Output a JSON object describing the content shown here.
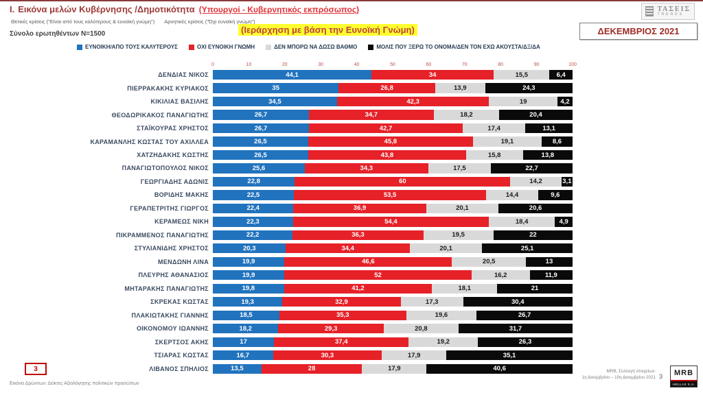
{
  "header": {
    "section_number": "I.",
    "title": "Εικόνα μελών Κυβέρνησης /Δημοτικότητα",
    "title_suffix": "(Υπουργοί - Κυβερνητικός εκπρόσωπος)",
    "subtitle_positive": "Θετικές κρίσεις (\"Είναι από τους καλύτερους & ευνοϊκή γνώμη\")",
    "subtitle_negative": "Αρνητικές κρίσεις (\"Όχι ευνοϊκή γνώμη\")",
    "sample": "Σύνολο ερωτηθέντων N=1500",
    "ranking_note": "(Ιεράρχηση με βάση την Ευνοϊκή Γνώμη)",
    "date_box": "ΔΕΚΕΜΒΡΙΟΣ 2021",
    "taseis_logo_line1": "ΤΑΣΕΙΣ",
    "taseis_logo_line2": "TRENDS"
  },
  "footer": {
    "page_badge": "3",
    "left_text": "Εικόνα Δρώντων: Δείκτες Αξιολόγησης πολιτικών προσώπων",
    "right_line1": "MRB, Συλλογή στοιχείων:",
    "right_line2": "1η Δεκεμβρίου – 10η Δεκεμβρίου 2021",
    "page_number": "3",
    "mrb_logo_text": "MRB",
    "mrb_logo_sub": "HELLAS S.A."
  },
  "chart_data": {
    "type": "bar",
    "stacked": true,
    "orientation": "horizontal",
    "xlim": [
      0,
      100
    ],
    "x_ticks": [
      0,
      10,
      20,
      30,
      40,
      50,
      60,
      70,
      80,
      90,
      100
    ],
    "grid": false,
    "legend_position": "top",
    "series": [
      {
        "key": "favorable",
        "name": "ΕΥΝΟΙΚΗ/ΑΠΟ ΤΟΥΣ ΚΑΛΥΤΕΡΟΥΣ",
        "color": "#2173be",
        "label_color": "#ffffff"
      },
      {
        "key": "not-favorable",
        "name": "ΟΧΙ ΕΥΝΟΙΚΗ ΓΝΩΜΗ",
        "color": "#e62128",
        "label_color": "#ffffff"
      },
      {
        "key": "cannot-rate",
        "name": "ΔΕΝ ΜΠΟΡΩ ΝΑ ΔΩΣΩ ΒΑΘΜΟ",
        "color": "#d9d9d9",
        "label_color": "#1a1a1a"
      },
      {
        "key": "barely-know",
        "name": "ΜΟΛΙΣ ΠΟΥ ΞΕΡΩ ΤΟ ΟΝΟΜΑ/ΔΕΝ ΤΟΝ ΕΧΩ ΑΚΟΥΣΤΑ/ΔΞ/ΔΑ",
        "color": "#0a0a0a",
        "label_color": "#ffffff"
      }
    ],
    "categories": [
      "ΔΕΝΔΙΑΣ ΝΙΚΟΣ",
      "ΠΙΕΡΡΑΚΑΚΗΣ ΚΥΡΙΑΚΟΣ",
      "ΚΙΚΙΛΙΑΣ ΒΑΣΙΛΗΣ",
      "ΘΕΟΔΩΡΙΚΑΚΟΣ ΠΑΝΑΓΙΩΤΗΣ",
      "ΣΤΑΪΚΟΥΡΑΣ ΧΡΗΣΤΟΣ",
      "ΚΑΡΑΜΑΝΛΗΣ ΚΩΣΤΑΣ ΤΟΥ ΑΧΙΛΛΕΑ",
      "ΧΑΤΖΗΔΑΚΗΣ ΚΩΣΤΗΣ",
      "ΠΑΝΑΓΙΩΤΟΠΟΥΛΟΣ ΝΙΚΟΣ",
      "ΓΕΩΡΓΙΑΔΗΣ ΑΔΩΝΙΣ",
      "ΒΟΡΙΔΗΣ ΜΑΚΗΣ",
      "ΓΕΡΑΠΕΤΡΙΤΗΣ ΓΙΩΡΓΟΣ",
      "ΚΕΡΑΜΕΩΣ ΝΙΚΗ",
      "ΠΙΚΡΑΜΜΕΝΟΣ ΠΑΝΑΓΙΩΤΗΣ",
      "ΣΤΥΛΙΑΝΙΔΗΣ ΧΡΗΣΤΟΣ",
      "ΜΕΝΔΩΝΗ ΛΙΝΑ",
      "ΠΛΕΥΡΗΣ ΑΘΑΝΑΣΙΟΣ",
      "ΜΗΤΑΡΑΚΗΣ ΠΑΝΑΓΙΩΤΗΣ",
      "ΣΚΡΕΚΑΣ ΚΩΣΤΑΣ",
      "ΠΛΑΚΙΩΤΑΚΗΣ ΓΙΑΝΝΗΣ",
      "ΟΙΚΟΝΟΜΟΥ ΙΩΑΝΝΗΣ",
      "ΣΚΕΡΤΣΟΣ ΑΚΗΣ",
      "ΤΣΙΑΡΑΣ ΚΩΣΤΑΣ",
      "ΛΙΒΑΝΟΣ ΣΠΗΛΙΟΣ"
    ],
    "values": [
      [
        44.1,
        34,
        15.5,
        6.4
      ],
      [
        35,
        26.8,
        13.9,
        24.3
      ],
      [
        34.5,
        42.3,
        19,
        4.2
      ],
      [
        26.7,
        34.7,
        18.2,
        20.4
      ],
      [
        26.7,
        42.7,
        17.4,
        13.1
      ],
      [
        26.5,
        45.8,
        19.1,
        8.6
      ],
      [
        26.5,
        43.8,
        15.8,
        13.8
      ],
      [
        25.6,
        34.3,
        17.5,
        22.7
      ],
      [
        22.8,
        60,
        14.2,
        3.1
      ],
      [
        22.5,
        53.5,
        14.4,
        9.6
      ],
      [
        22.4,
        36.9,
        20.1,
        20.6
      ],
      [
        22.3,
        54.4,
        18.4,
        4.9
      ],
      [
        22.2,
        36.3,
        19.5,
        22
      ],
      [
        20.3,
        34.4,
        20.1,
        25.1
      ],
      [
        19.9,
        46.6,
        20.5,
        13
      ],
      [
        19.9,
        52,
        16.2,
        11.9
      ],
      [
        19.8,
        41.2,
        18.1,
        21
      ],
      [
        19.3,
        32.9,
        17.3,
        30.4
      ],
      [
        18.5,
        35.3,
        19.6,
        26.7
      ],
      [
        18.2,
        29.3,
        20.8,
        31.7
      ],
      [
        17,
        37.4,
        19.2,
        26.3
      ],
      [
        16.7,
        30.3,
        17.9,
        35.1
      ],
      [
        13.5,
        28,
        17.9,
        40.6
      ]
    ]
  }
}
